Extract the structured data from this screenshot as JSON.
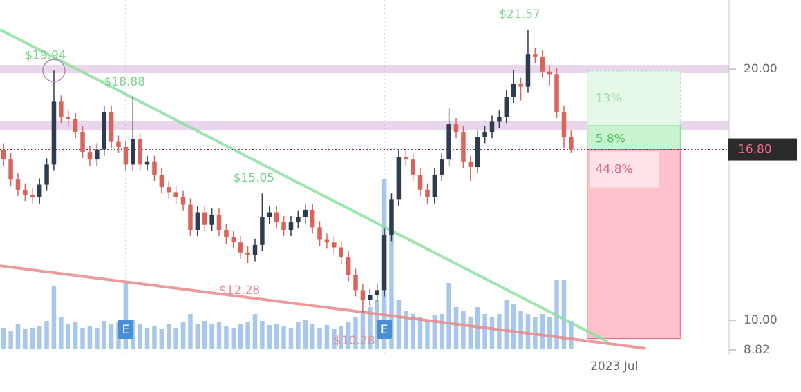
{
  "chart_data": {
    "type": "candlestick",
    "xlim": [
      -0.5,
      101
    ],
    "xticks": [
      {
        "value": 85,
        "label": "2023 Jul"
      }
    ],
    "ylim": [
      8.6,
      22.75
    ],
    "yticks": [
      {
        "value": 8.82,
        "label": "8.82"
      },
      {
        "value": 10,
        "label": "10.00"
      },
      {
        "value": 20,
        "label": "20.00"
      }
    ],
    "last_price": {
      "value": 16.8,
      "label": "16.80"
    },
    "up_color": "#2f3b4e",
    "down_color": "#d9645c",
    "volume_color": "#a7c8ec",
    "vlim": [
      0,
      300
    ],
    "open": [
      16.8,
      16.4,
      15.6,
      15.2,
      15.0,
      14.9,
      15.4,
      16.2,
      18.7,
      18.1,
      18.0,
      17.5,
      16.7,
      16.4,
      16.8,
      18.3,
      17.1,
      16.9,
      16.2,
      17.2,
      16.2,
      16.3,
      15.8,
      15.3,
      15.1,
      14.9,
      14.6,
      13.6,
      14.3,
      13.8,
      14.2,
      13.6,
      13.3,
      13.1,
      12.7,
      12.6,
      13.0,
      14.1,
      14.3,
      13.9,
      13.6,
      13.9,
      14.1,
      14.4,
      13.7,
      13.2,
      13.1,
      12.9,
      12.5,
      11.8,
      11.2,
      10.8,
      11.0,
      11.2,
      13.4,
      14.8,
      16.5,
      16.4,
      15.8,
      15.2,
      14.9,
      15.8,
      16.4,
      17.8,
      17.5,
      16.3,
      16.1,
      17.3,
      17.5,
      17.9,
      18.1,
      18.9,
      19.4,
      19.3,
      20.6,
      20.5,
      19.9,
      19.8,
      18.3,
      17.3
    ],
    "high": [
      17.05,
      16.65,
      15.85,
      15.45,
      15.25,
      15.65,
      16.45,
      19.94,
      18.95,
      18.35,
      18.25,
      17.75,
      16.95,
      17.05,
      18.55,
      18.55,
      17.35,
      17.15,
      18.88,
      17.45,
      16.55,
      16.55,
      16.05,
      15.55,
      15.35,
      15.15,
      14.85,
      14.55,
      14.55,
      14.45,
      14.45,
      13.85,
      13.55,
      13.35,
      12.95,
      13.25,
      15.05,
      14.55,
      14.55,
      14.15,
      14.15,
      14.35,
      14.65,
      14.65,
      13.95,
      13.45,
      13.35,
      13.15,
      12.75,
      12.05,
      11.45,
      11.25,
      11.45,
      13.65,
      15.05,
      16.75,
      16.75,
      16.65,
      16.05,
      15.45,
      16.05,
      16.65,
      18.45,
      18.05,
      17.75,
      16.55,
      17.55,
      17.75,
      18.15,
      18.35,
      19.15,
      19.95,
      19.65,
      21.57,
      20.85,
      20.75,
      20.15,
      20.05,
      18.55,
      17.55
    ],
    "low": [
      16.15,
      15.35,
      14.95,
      14.75,
      14.65,
      14.65,
      15.15,
      15.95,
      17.85,
      17.75,
      17.25,
      16.45,
      16.15,
      16.15,
      16.55,
      16.85,
      16.65,
      15.95,
      15.95,
      15.95,
      15.95,
      15.55,
      15.05,
      14.85,
      14.65,
      14.35,
      13.35,
      13.35,
      13.55,
      13.55,
      13.35,
      13.05,
      12.85,
      12.45,
      12.28,
      12.35,
      12.75,
      13.85,
      13.65,
      13.35,
      13.35,
      13.65,
      13.85,
      13.45,
      12.95,
      12.85,
      12.65,
      12.25,
      11.55,
      10.95,
      10.28,
      10.55,
      10.75,
      10.95,
      13.15,
      14.55,
      16.15,
      15.55,
      14.95,
      14.65,
      14.65,
      15.55,
      16.15,
      17.25,
      16.05,
      15.55,
      15.85,
      17.05,
      17.25,
      17.65,
      17.85,
      18.65,
      18.75,
      19.05,
      20.25,
      19.65,
      19.35,
      18.05,
      16.85,
      16.65
    ],
    "close": [
      16.4,
      15.6,
      15.2,
      15.0,
      14.9,
      15.4,
      16.2,
      18.7,
      18.1,
      18.0,
      17.5,
      16.7,
      16.4,
      16.8,
      18.3,
      17.1,
      16.9,
      16.2,
      17.2,
      16.2,
      16.3,
      15.8,
      15.3,
      15.1,
      14.9,
      14.6,
      13.6,
      14.3,
      13.8,
      14.2,
      13.6,
      13.3,
      13.1,
      12.7,
      12.6,
      13.0,
      14.1,
      14.3,
      13.9,
      13.6,
      13.9,
      14.1,
      14.4,
      13.7,
      13.2,
      13.1,
      12.9,
      12.5,
      11.8,
      11.2,
      10.8,
      11.0,
      11.2,
      13.4,
      14.8,
      16.5,
      16.4,
      15.8,
      15.2,
      14.9,
      15.8,
      16.4,
      17.8,
      17.5,
      16.3,
      16.1,
      17.3,
      17.5,
      17.9,
      18.1,
      18.9,
      19.4,
      19.3,
      20.6,
      20.5,
      19.9,
      19.8,
      18.3,
      17.3,
      16.8
    ],
    "volume": [
      30,
      25,
      35,
      28,
      30,
      32,
      40,
      90,
      45,
      35,
      38,
      30,
      32,
      30,
      40,
      35,
      38,
      95,
      42,
      35,
      30,
      32,
      28,
      35,
      30,
      38,
      50,
      35,
      40,
      36,
      38,
      33,
      30,
      35,
      38,
      50,
      40,
      34,
      36,
      32,
      30,
      38,
      42,
      35,
      30,
      34,
      28,
      32,
      38,
      45,
      55,
      60,
      70,
      245,
      180,
      70,
      55,
      50,
      45,
      40,
      48,
      50,
      95,
      60,
      55,
      45,
      60,
      50,
      45,
      50,
      70,
      65,
      55,
      50,
      45,
      50,
      45,
      100,
      100,
      40
    ],
    "annotations": [
      {
        "index": 7,
        "value": 19.94,
        "label": "$19.94",
        "kind": "high"
      },
      {
        "index": 18,
        "value": 18.88,
        "label": "$18.88",
        "kind": "high"
      },
      {
        "index": 36,
        "value": 15.05,
        "label": "$15.05",
        "kind": "high"
      },
      {
        "index": 73,
        "value": 21.57,
        "label": "$21.57",
        "kind": "high"
      },
      {
        "index": 34,
        "value": 12.28,
        "label": "$12.28",
        "kind": "low"
      },
      {
        "index": 50,
        "value": 10.28,
        "label": "$10.28",
        "kind": "low"
      }
    ],
    "levels": [
      20.0,
      17.75
    ],
    "trendlines": [
      {
        "color": "#8ee0a0",
        "x": [
          -0.5,
          84.1
        ],
        "y": [
          21.57,
          9.15
        ]
      },
      {
        "color": "#e88a8a",
        "x": [
          -0.5,
          89.4
        ],
        "y": [
          12.17,
          8.88
        ]
      }
    ],
    "earnings": [
      {
        "index": 17,
        "label": "E"
      },
      {
        "index": 53,
        "label": "E"
      }
    ],
    "position": {
      "start": 81.25,
      "end": 94.2,
      "target": 19.92,
      "mid": 17.75,
      "entry": 16.8,
      "stop": 9.27,
      "labels": [
        "13%",
        "5.8%",
        "44.8%"
      ]
    }
  }
}
